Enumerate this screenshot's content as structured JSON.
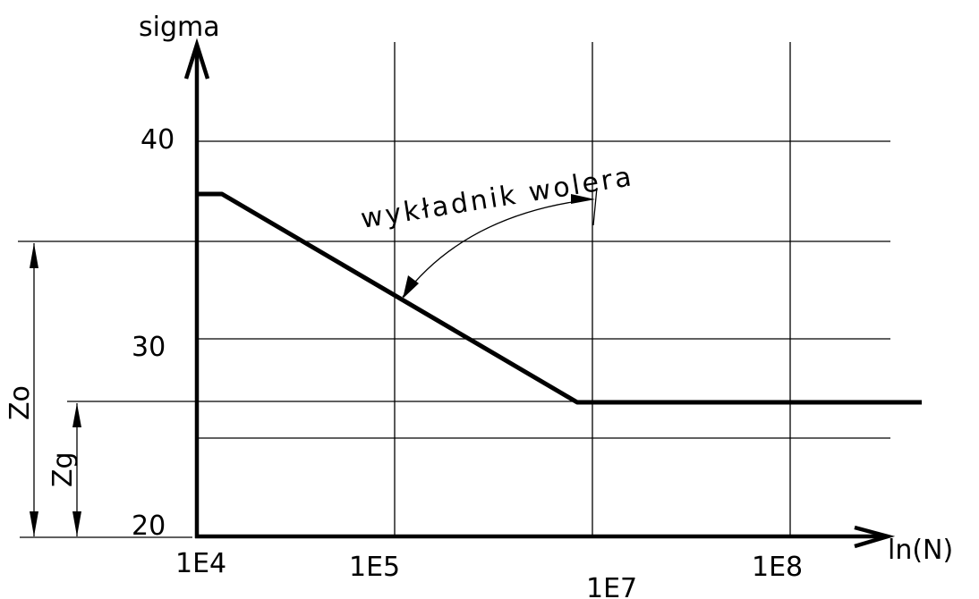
{
  "y_axis_label": "sigma",
  "x_axis_label": "ln(N)",
  "y_ticks": [
    "40",
    "30",
    "20"
  ],
  "x_ticks": [
    "1E4",
    "1E5",
    "1E7",
    "1E8"
  ],
  "annotation": "wykładnik wolera",
  "dimensions": {
    "zo": "Zo",
    "zg": "Zg"
  },
  "curve_points": [
    {
      "x": "1E4",
      "sigma": 37.3
    },
    {
      "x": "1E4+",
      "sigma": 37.3
    },
    {
      "x": "≈1E7",
      "sigma": 26.8
    },
    {
      "x": "beyond 1E8",
      "sigma": 26.8
    }
  ],
  "colors": {
    "line": "#000000",
    "background": "#ffffff"
  }
}
